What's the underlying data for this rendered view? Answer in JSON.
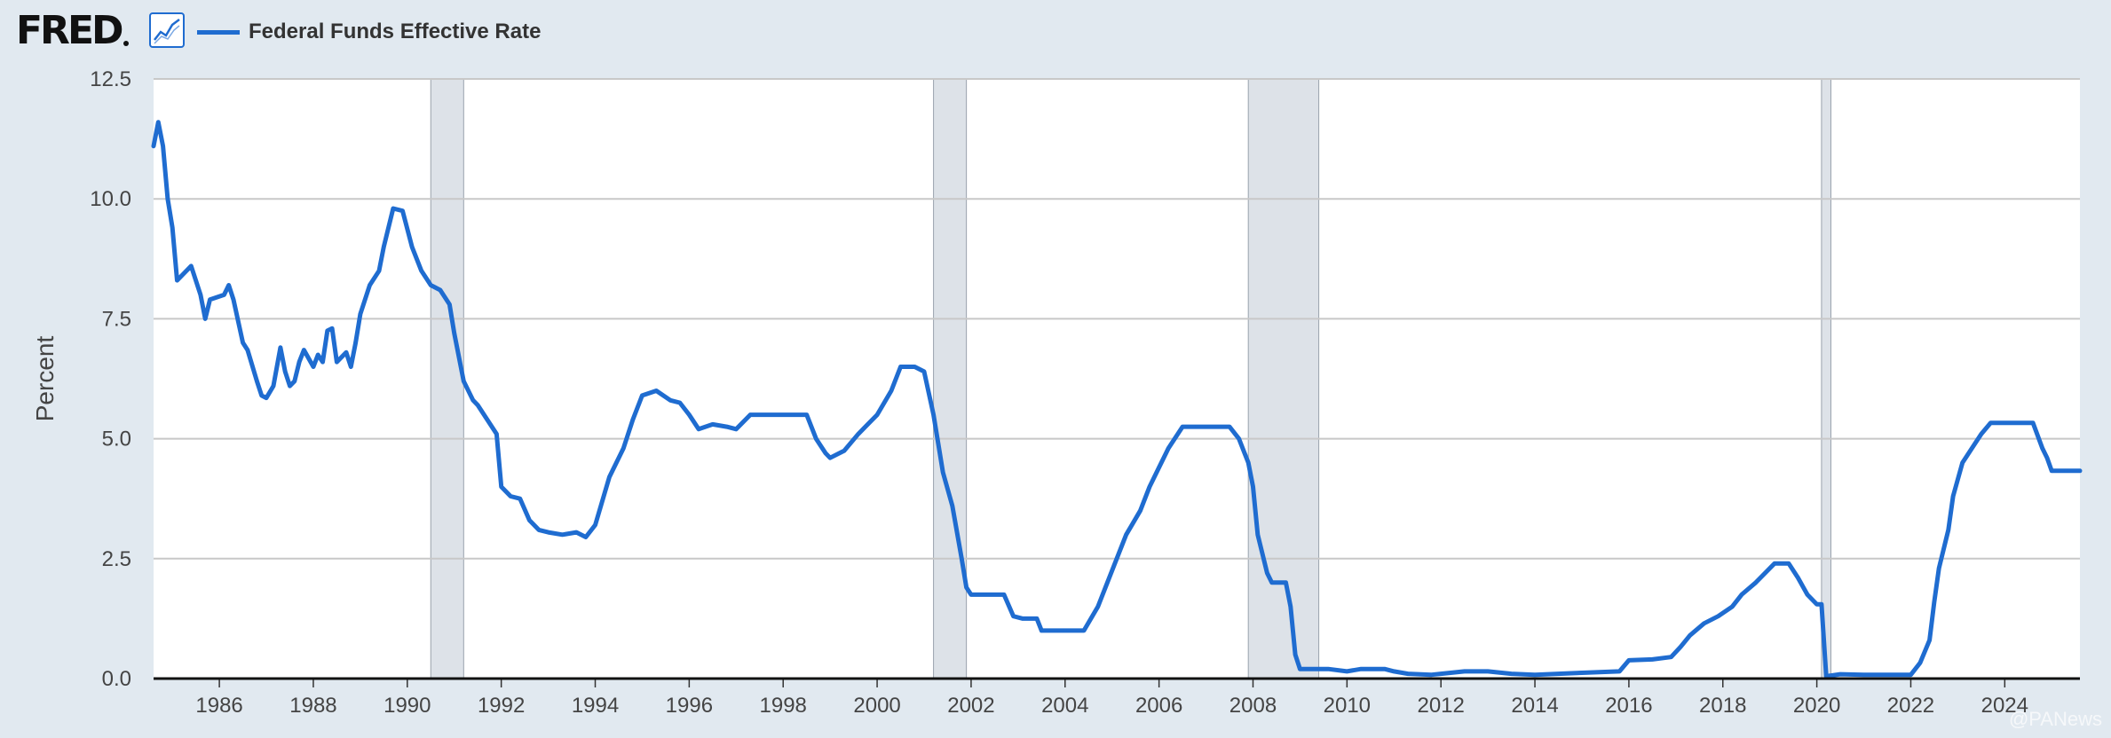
{
  "header": {
    "logo_text": "FRED",
    "graph_icon": "line-graph-icon",
    "legend_label": "Federal Funds Effective Rate"
  },
  "watermark": "@PANews",
  "colors": {
    "series": "#1f6cd0",
    "plot_background": "#ffffff",
    "page_background": "#e1e9f0",
    "gridline": "#c8c8c8",
    "recession": "#dde2e8",
    "axis_text": "#444444"
  },
  "chart_data": {
    "type": "line",
    "title": "",
    "xlabel": "",
    "ylabel": "Percent",
    "xlim": [
      1984.6,
      2025.6
    ],
    "ylim": [
      0,
      12.5
    ],
    "grid": true,
    "legend_position": "top-left",
    "x_ticks": [
      1986,
      1988,
      1990,
      1992,
      1994,
      1996,
      1998,
      2000,
      2002,
      2004,
      2006,
      2008,
      2010,
      2012,
      2014,
      2016,
      2018,
      2020,
      2022,
      2024
    ],
    "y_ticks": [
      "0.0",
      "2.5",
      "5.0",
      "7.5",
      "10.0",
      "12.5"
    ],
    "y_tick_values": [
      0,
      2.5,
      5,
      7.5,
      10,
      12.5
    ],
    "recessions": [
      [
        1990.5,
        1991.2
      ],
      [
        2001.2,
        2001.9
      ],
      [
        2007.9,
        2009.4
      ],
      [
        2020.1,
        2020.3
      ]
    ],
    "series": [
      {
        "name": "Federal Funds Effective Rate",
        "points": [
          [
            1984.6,
            11.1
          ],
          [
            1984.7,
            11.6
          ],
          [
            1984.8,
            11.1
          ],
          [
            1984.9,
            10.0
          ],
          [
            1985.0,
            9.4
          ],
          [
            1985.1,
            8.3
          ],
          [
            1985.4,
            8.6
          ],
          [
            1985.6,
            8.0
          ],
          [
            1985.7,
            7.5
          ],
          [
            1985.8,
            7.9
          ],
          [
            1986.1,
            8.0
          ],
          [
            1986.2,
            8.2
          ],
          [
            1986.3,
            7.9
          ],
          [
            1986.5,
            7.0
          ],
          [
            1986.6,
            6.85
          ],
          [
            1986.8,
            6.2
          ],
          [
            1986.9,
            5.9
          ],
          [
            1987.0,
            5.85
          ],
          [
            1987.15,
            6.1
          ],
          [
            1987.3,
            6.9
          ],
          [
            1987.4,
            6.4
          ],
          [
            1987.5,
            6.1
          ],
          [
            1987.6,
            6.2
          ],
          [
            1987.7,
            6.6
          ],
          [
            1987.8,
            6.85
          ],
          [
            1988.0,
            6.5
          ],
          [
            1988.1,
            6.75
          ],
          [
            1988.2,
            6.6
          ],
          [
            1988.3,
            7.25
          ],
          [
            1988.4,
            7.3
          ],
          [
            1988.5,
            6.6
          ],
          [
            1988.7,
            6.8
          ],
          [
            1988.8,
            6.5
          ],
          [
            1988.9,
            7.0
          ],
          [
            1989.0,
            7.6
          ],
          [
            1989.2,
            8.2
          ],
          [
            1989.4,
            8.5
          ],
          [
            1989.5,
            9.0
          ],
          [
            1989.7,
            9.8
          ],
          [
            1989.9,
            9.75
          ],
          [
            1990.1,
            9.0
          ],
          [
            1990.3,
            8.5
          ],
          [
            1990.5,
            8.2
          ],
          [
            1990.7,
            8.1
          ],
          [
            1990.9,
            7.8
          ],
          [
            1991.0,
            7.2
          ],
          [
            1991.2,
            6.2
          ],
          [
            1991.4,
            5.8
          ],
          [
            1991.5,
            5.7
          ],
          [
            1991.7,
            5.4
          ],
          [
            1991.9,
            5.1
          ],
          [
            1992.0,
            4.0
          ],
          [
            1992.2,
            3.8
          ],
          [
            1992.4,
            3.75
          ],
          [
            1992.6,
            3.3
          ],
          [
            1992.8,
            3.1
          ],
          [
            1993.0,
            3.05
          ],
          [
            1993.3,
            3.0
          ],
          [
            1993.6,
            3.05
          ],
          [
            1993.8,
            2.95
          ],
          [
            1994.0,
            3.2
          ],
          [
            1994.3,
            4.2
          ],
          [
            1994.6,
            4.8
          ],
          [
            1994.8,
            5.4
          ],
          [
            1995.0,
            5.9
          ],
          [
            1995.3,
            6.0
          ],
          [
            1995.6,
            5.8
          ],
          [
            1995.8,
            5.75
          ],
          [
            1996.0,
            5.5
          ],
          [
            1996.2,
            5.2
          ],
          [
            1996.5,
            5.3
          ],
          [
            1996.8,
            5.25
          ],
          [
            1997.0,
            5.2
          ],
          [
            1997.3,
            5.5
          ],
          [
            1997.6,
            5.5
          ],
          [
            1997.9,
            5.5
          ],
          [
            1998.2,
            5.5
          ],
          [
            1998.5,
            5.5
          ],
          [
            1998.7,
            5.0
          ],
          [
            1998.9,
            4.7
          ],
          [
            1999.0,
            4.6
          ],
          [
            1999.3,
            4.75
          ],
          [
            1999.6,
            5.1
          ],
          [
            1999.8,
            5.3
          ],
          [
            2000.0,
            5.5
          ],
          [
            2000.3,
            6.0
          ],
          [
            2000.5,
            6.5
          ],
          [
            2000.8,
            6.5
          ],
          [
            2001.0,
            6.4
          ],
          [
            2001.2,
            5.5
          ],
          [
            2001.4,
            4.3
          ],
          [
            2001.6,
            3.6
          ],
          [
            2001.8,
            2.5
          ],
          [
            2001.9,
            1.9
          ],
          [
            2002.0,
            1.75
          ],
          [
            2002.3,
            1.75
          ],
          [
            2002.7,
            1.75
          ],
          [
            2002.9,
            1.3
          ],
          [
            2003.1,
            1.25
          ],
          [
            2003.4,
            1.25
          ],
          [
            2003.5,
            1.0
          ],
          [
            2003.8,
            1.0
          ],
          [
            2004.0,
            1.0
          ],
          [
            2004.4,
            1.0
          ],
          [
            2004.7,
            1.5
          ],
          [
            2004.9,
            2.0
          ],
          [
            2005.1,
            2.5
          ],
          [
            2005.3,
            3.0
          ],
          [
            2005.6,
            3.5
          ],
          [
            2005.8,
            4.0
          ],
          [
            2006.0,
            4.4
          ],
          [
            2006.2,
            4.8
          ],
          [
            2006.5,
            5.25
          ],
          [
            2006.8,
            5.25
          ],
          [
            2007.0,
            5.25
          ],
          [
            2007.3,
            5.25
          ],
          [
            2007.5,
            5.25
          ],
          [
            2007.7,
            5.0
          ],
          [
            2007.9,
            4.5
          ],
          [
            2008.0,
            4.0
          ],
          [
            2008.1,
            3.0
          ],
          [
            2008.3,
            2.2
          ],
          [
            2008.4,
            2.0
          ],
          [
            2008.7,
            2.0
          ],
          [
            2008.8,
            1.5
          ],
          [
            2008.9,
            0.5
          ],
          [
            2009.0,
            0.2
          ],
          [
            2009.3,
            0.2
          ],
          [
            2009.6,
            0.2
          ],
          [
            2010.0,
            0.15
          ],
          [
            2010.3,
            0.2
          ],
          [
            2010.8,
            0.2
          ],
          [
            2011.0,
            0.15
          ],
          [
            2011.3,
            0.1
          ],
          [
            2011.8,
            0.08
          ],
          [
            2012.0,
            0.1
          ],
          [
            2012.5,
            0.15
          ],
          [
            2013.0,
            0.15
          ],
          [
            2013.5,
            0.1
          ],
          [
            2014.0,
            0.08
          ],
          [
            2014.5,
            0.1
          ],
          [
            2015.0,
            0.12
          ],
          [
            2015.8,
            0.15
          ],
          [
            2016.0,
            0.38
          ],
          [
            2016.5,
            0.4
          ],
          [
            2016.9,
            0.45
          ],
          [
            2017.1,
            0.66
          ],
          [
            2017.3,
            0.9
          ],
          [
            2017.6,
            1.15
          ],
          [
            2017.9,
            1.3
          ],
          [
            2018.2,
            1.5
          ],
          [
            2018.4,
            1.75
          ],
          [
            2018.7,
            2.0
          ],
          [
            2018.9,
            2.2
          ],
          [
            2019.1,
            2.4
          ],
          [
            2019.4,
            2.4
          ],
          [
            2019.6,
            2.1
          ],
          [
            2019.8,
            1.75
          ],
          [
            2020.0,
            1.55
          ],
          [
            2020.1,
            1.55
          ],
          [
            2020.2,
            0.05
          ],
          [
            2020.5,
            0.09
          ],
          [
            2021.0,
            0.08
          ],
          [
            2021.5,
            0.08
          ],
          [
            2022.0,
            0.08
          ],
          [
            2022.2,
            0.33
          ],
          [
            2022.4,
            0.8
          ],
          [
            2022.5,
            1.6
          ],
          [
            2022.6,
            2.3
          ],
          [
            2022.8,
            3.1
          ],
          [
            2022.9,
            3.8
          ],
          [
            2023.1,
            4.5
          ],
          [
            2023.3,
            4.8
          ],
          [
            2023.5,
            5.1
          ],
          [
            2023.7,
            5.33
          ],
          [
            2024.0,
            5.33
          ],
          [
            2024.3,
            5.33
          ],
          [
            2024.6,
            5.33
          ],
          [
            2024.8,
            4.8
          ],
          [
            2024.9,
            4.6
          ],
          [
            2025.0,
            4.33
          ],
          [
            2025.3,
            4.33
          ],
          [
            2025.6,
            4.33
          ]
        ]
      }
    ]
  }
}
